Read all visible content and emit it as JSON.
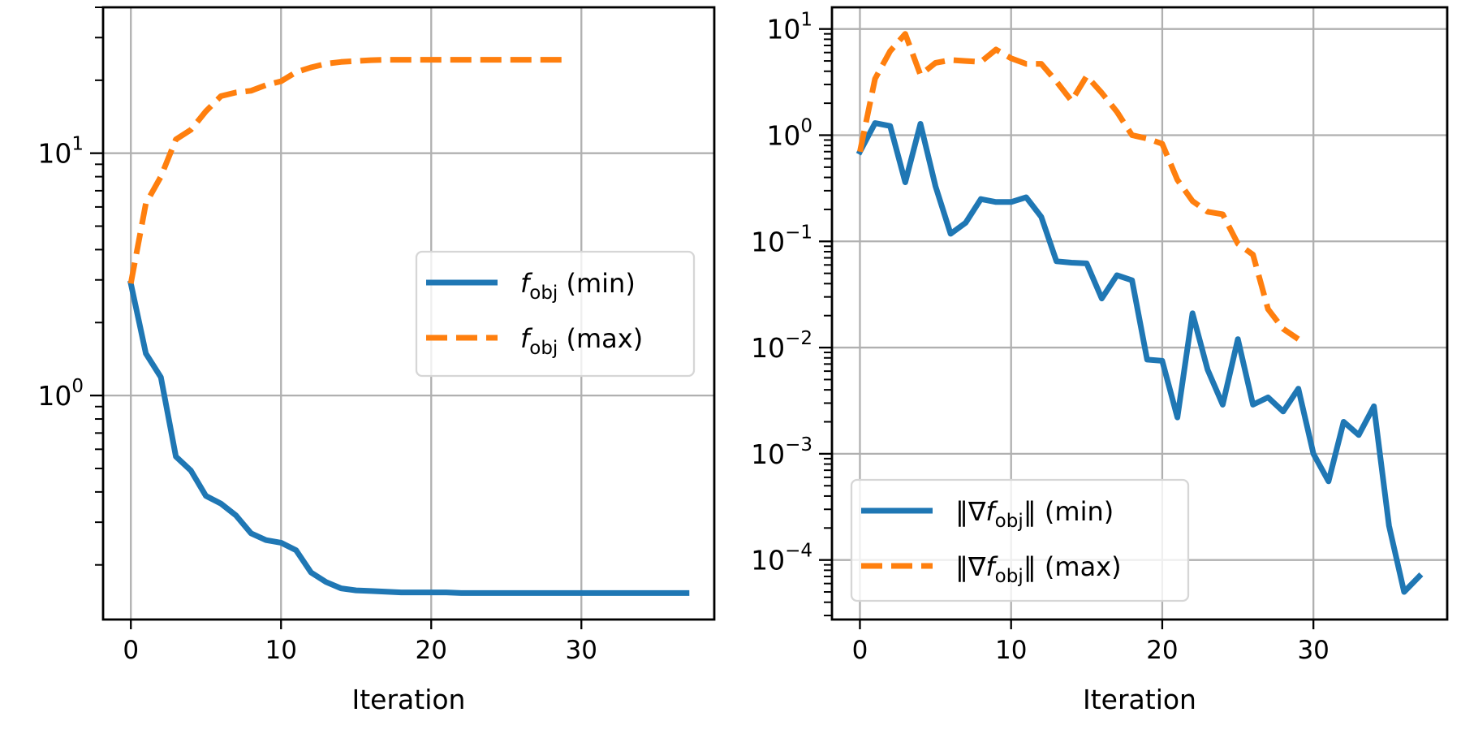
{
  "chart_data": [
    {
      "type": "line",
      "yscale": "log",
      "xlabel": "Iteration",
      "ylabel": "",
      "xlim": [
        -1.85,
        38.85
      ],
      "ylim": [
        0.119,
        40
      ],
      "grid": true,
      "xticks": [
        0,
        10,
        20,
        30
      ],
      "yticks": [
        {
          "base": "10",
          "exp": "0",
          "value": 1
        },
        {
          "base": "10",
          "exp": "1",
          "value": 10
        }
      ],
      "legend_position": "center-right",
      "series": [
        {
          "name": "f_obj (min)",
          "legend": {
            "prefix": "",
            "var": "f",
            "sub": "obj",
            "suffix": " (min)"
          },
          "color": "#1f77b4",
          "style": "solid",
          "x": [
            0,
            1,
            2,
            3,
            4,
            5,
            6,
            7,
            8,
            9,
            10,
            11,
            12,
            13,
            14,
            15,
            16,
            17,
            18,
            19,
            20,
            21,
            22,
            23,
            24,
            25,
            26,
            27,
            28,
            29,
            30,
            31,
            32,
            33,
            34,
            35,
            36,
            37
          ],
          "values": [
            2.9,
            1.49,
            1.19,
            0.56,
            0.49,
            0.385,
            0.358,
            0.32,
            0.27,
            0.253,
            0.247,
            0.23,
            0.186,
            0.17,
            0.16,
            0.157,
            0.156,
            0.155,
            0.154,
            0.154,
            0.154,
            0.154,
            0.153,
            0.153,
            0.153,
            0.153,
            0.153,
            0.153,
            0.153,
            0.153,
            0.153,
            0.153,
            0.153,
            0.153,
            0.153,
            0.153,
            0.153,
            0.153
          ]
        },
        {
          "name": "f_obj (max)",
          "legend": {
            "prefix": "",
            "var": "f",
            "sub": "obj",
            "suffix": " (max)"
          },
          "color": "#ff7f0e",
          "style": "dashed",
          "x": [
            0,
            1,
            2,
            3,
            4,
            5,
            6,
            7,
            8,
            9,
            10,
            11,
            12,
            13,
            14,
            15,
            16,
            17,
            18,
            19,
            20,
            21,
            22,
            23,
            24,
            25,
            26,
            27,
            28,
            29
          ],
          "values": [
            2.9,
            6.2,
            8.0,
            11.4,
            12.5,
            14.9,
            17.2,
            17.8,
            18.1,
            19.1,
            19.8,
            21.6,
            22.6,
            23.4,
            23.8,
            24.0,
            24.2,
            24.3,
            24.3,
            24.3,
            24.3,
            24.3,
            24.3,
            24.3,
            24.3,
            24.3,
            24.3,
            24.3,
            24.3,
            24.3
          ]
        }
      ]
    },
    {
      "type": "line",
      "yscale": "log",
      "xlabel": "Iteration",
      "ylabel": "",
      "xlim": [
        -1.85,
        38.85
      ],
      "ylim": [
        2.75e-05,
        16
      ],
      "grid": true,
      "xticks": [
        0,
        10,
        20,
        30
      ],
      "yticks": [
        {
          "base": "10",
          "exp": "−4",
          "value": 0.0001
        },
        {
          "base": "10",
          "exp": "−3",
          "value": 0.001
        },
        {
          "base": "10",
          "exp": "−2",
          "value": 0.01
        },
        {
          "base": "10",
          "exp": "−1",
          "value": 0.1
        },
        {
          "base": "10",
          "exp": "0",
          "value": 1
        },
        {
          "base": "10",
          "exp": "1",
          "value": 10
        }
      ],
      "legend_position": "lower-left",
      "series": [
        {
          "name": "||grad f_obj|| (min)",
          "legend": {
            "prefix": "‖∇",
            "var": "f",
            "sub": "obj",
            "suffix": "‖ (min)"
          },
          "color": "#1f77b4",
          "style": "solid",
          "x": [
            0,
            1,
            2,
            3,
            4,
            5,
            6,
            7,
            8,
            9,
            10,
            11,
            12,
            13,
            14,
            15,
            16,
            17,
            18,
            19,
            20,
            21,
            22,
            23,
            24,
            25,
            26,
            27,
            28,
            29,
            30,
            31,
            32,
            33,
            34,
            35,
            36,
            37
          ],
          "values": [
            0.7,
            1.3,
            1.22,
            0.36,
            1.28,
            0.33,
            0.118,
            0.15,
            0.25,
            0.235,
            0.235,
            0.26,
            0.17,
            0.065,
            0.063,
            0.062,
            0.029,
            0.048,
            0.043,
            0.0077,
            0.0075,
            0.0022,
            0.021,
            0.0062,
            0.0029,
            0.012,
            0.0029,
            0.0034,
            0.0025,
            0.0041,
            0.001,
            0.00055,
            0.002,
            0.0015,
            0.0028,
            0.00021,
            5e-05,
            7e-05
          ]
        },
        {
          "name": "||grad f_obj|| (max)",
          "legend": {
            "prefix": "‖∇",
            "var": "f",
            "sub": "obj",
            "suffix": "‖ (max)"
          },
          "color": "#ff7f0e",
          "style": "dashed",
          "x": [
            0,
            1,
            2,
            3,
            4,
            5,
            6,
            7,
            8,
            9,
            10,
            11,
            12,
            13,
            14,
            15,
            16,
            17,
            18,
            19,
            20,
            21,
            22,
            23,
            24,
            25,
            26,
            27,
            28,
            29
          ],
          "values": [
            0.7,
            3.4,
            6.2,
            9.0,
            3.7,
            4.8,
            5.1,
            5.0,
            4.9,
            6.4,
            5.3,
            4.7,
            4.7,
            3.2,
            2.1,
            3.6,
            2.5,
            1.66,
            1.0,
            0.93,
            0.83,
            0.38,
            0.24,
            0.19,
            0.18,
            0.095,
            0.075,
            0.023,
            0.015,
            0.012
          ]
        }
      ]
    }
  ]
}
